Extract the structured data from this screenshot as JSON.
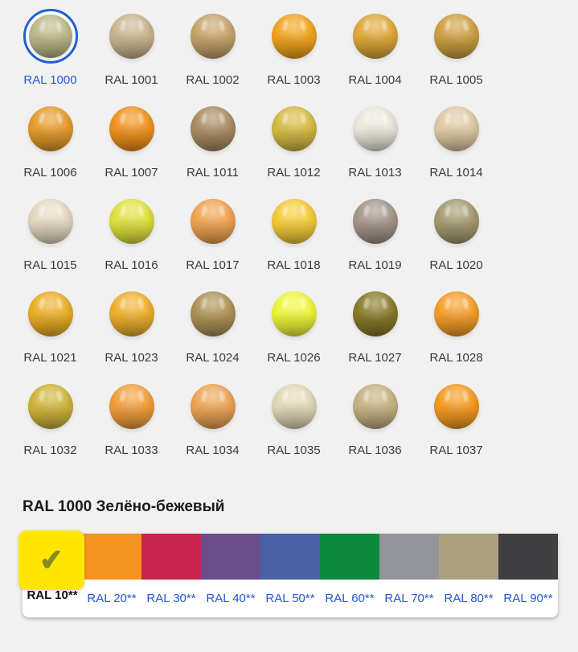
{
  "theme": {
    "--bg": "#f1f1f2",
    "--card": "#ffffff",
    "--link": "#2257d6",
    "--label": "#3a3a3a",
    "--ring": "#2160d3",
    "--check": "#8a8a1e",
    "--heading": "#1a1a1a",
    "--selected-label": "#111111"
  },
  "grid": {
    "items": [
      {
        "code": "RAL 1000",
        "color": "#BDB98A",
        "selected": true
      },
      {
        "code": "RAL 1001",
        "color": "#C9B590"
      },
      {
        "code": "RAL 1002",
        "color": "#C6A46B"
      },
      {
        "code": "RAL 1003",
        "color": "#F2A41E"
      },
      {
        "code": "RAL 1004",
        "color": "#DFA83A"
      },
      {
        "code": "RAL 1005",
        "color": "#CDA043"
      },
      {
        "code": "RAL 1006",
        "color": "#E59B2C"
      },
      {
        "code": "RAL 1007",
        "color": "#F0931E"
      },
      {
        "code": "RAL 1011",
        "color": "#AA8C64"
      },
      {
        "code": "RAL 1012",
        "color": "#D5BB45"
      },
      {
        "code": "RAL 1013",
        "color": "#EBE8DB"
      },
      {
        "code": "RAL 1014",
        "color": "#DFCAA5"
      },
      {
        "code": "RAL 1015",
        "color": "#E5D9C2"
      },
      {
        "code": "RAL 1016",
        "color": "#E0E13F"
      },
      {
        "code": "RAL 1017",
        "color": "#EFA451"
      },
      {
        "code": "RAL 1018",
        "color": "#F3CC3B"
      },
      {
        "code": "RAL 1019",
        "color": "#A4968A"
      },
      {
        "code": "RAL 1020",
        "color": "#A59B70"
      },
      {
        "code": "RAL 1021",
        "color": "#EBAE27"
      },
      {
        "code": "RAL 1023",
        "color": "#EEB02E"
      },
      {
        "code": "RAL 1024",
        "color": "#AD9357"
      },
      {
        "code": "RAL 1026",
        "color": "#EDF63A"
      },
      {
        "code": "RAL 1027",
        "color": "#887B2A"
      },
      {
        "code": "RAL 1028",
        "color": "#F59E28"
      },
      {
        "code": "RAL 1032",
        "color": "#CFB43C"
      },
      {
        "code": "RAL 1033",
        "color": "#F29E3C"
      },
      {
        "code": "RAL 1034",
        "color": "#EBA455"
      },
      {
        "code": "RAL 1035",
        "color": "#E1D8B9"
      },
      {
        "code": "RAL 1036",
        "color": "#C6B282"
      },
      {
        "code": "RAL 1037",
        "color": "#F49B20"
      }
    ]
  },
  "heading": {
    "text": "RAL 1000 Зелёно-бежевый"
  },
  "tabs": {
    "checkmark": "✔",
    "items": [
      {
        "label": "RAL 10**",
        "color": "#FFE600",
        "selected": true
      },
      {
        "label": "RAL 20**",
        "color": "#F6921E"
      },
      {
        "label": "RAL 30**",
        "color": "#C8254F"
      },
      {
        "label": "RAL 40**",
        "color": "#6C4D8E"
      },
      {
        "label": "RAL 50**",
        "color": "#4A61A8"
      },
      {
        "label": "RAL 60**",
        "color": "#0B8A3E"
      },
      {
        "label": "RAL 70**",
        "color": "#92969A"
      },
      {
        "label": "RAL 80**",
        "color": "#AC9F80"
      },
      {
        "label": "RAL 90**",
        "color": "#403F41"
      }
    ]
  }
}
